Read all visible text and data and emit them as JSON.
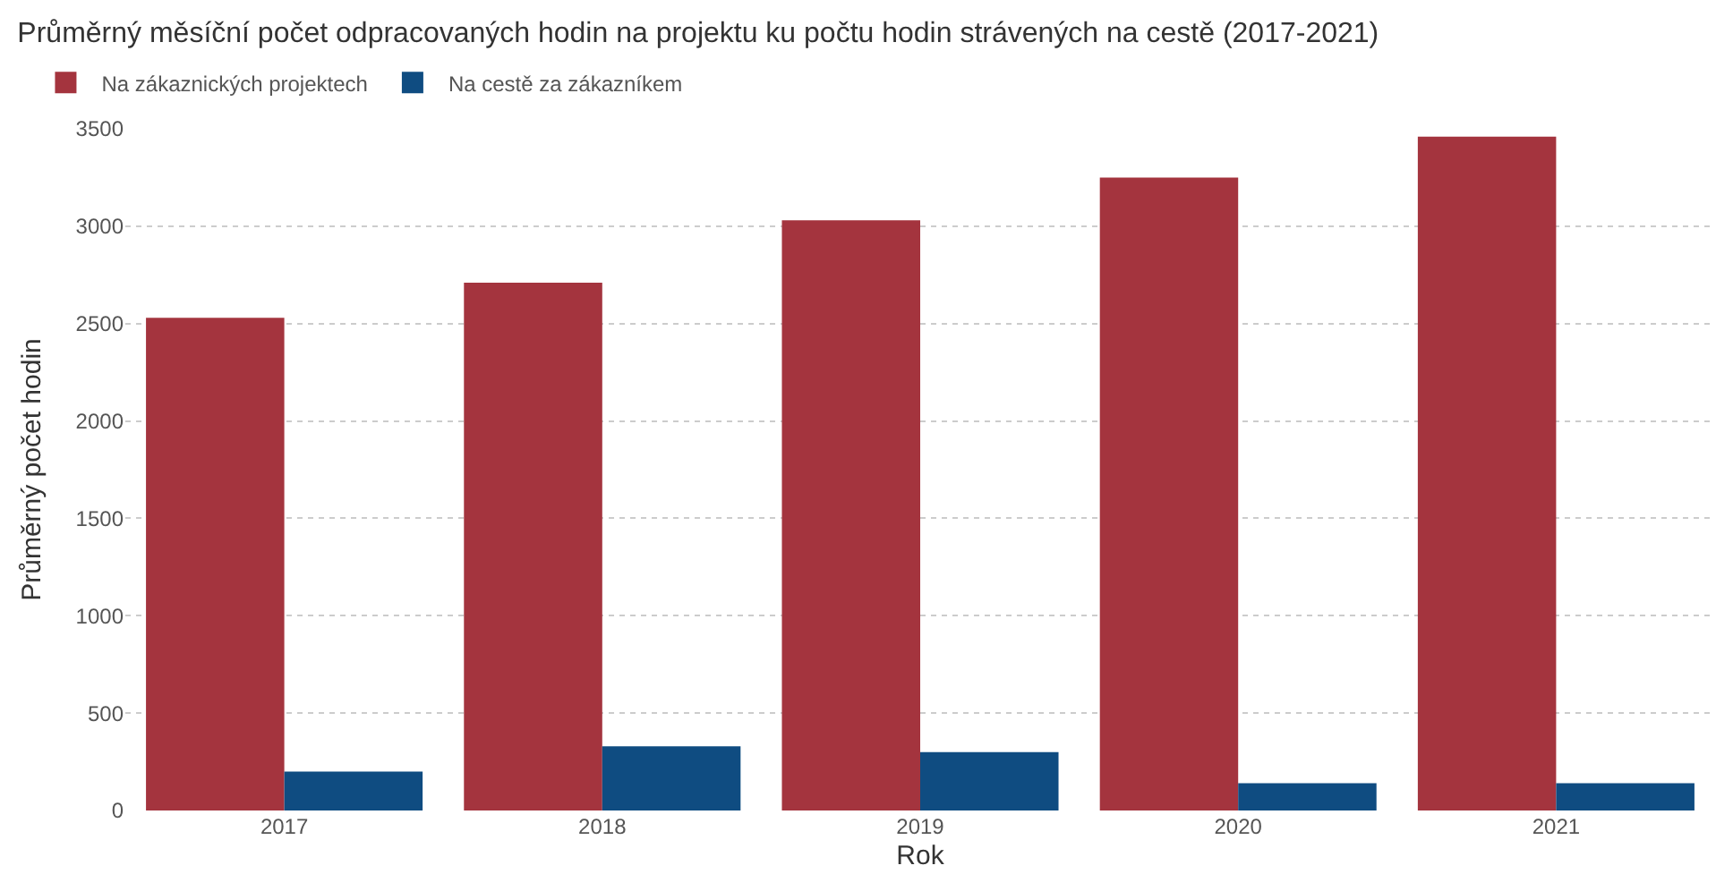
{
  "chart_data": {
    "type": "bar",
    "title": "Průměrný měsíční počet odpracovaných hodin na projektu ku počtu hodin strávených na cestě (2017-2021)",
    "xlabel": "Rok",
    "ylabel": "Průměrný počet hodin",
    "categories": [
      "2017",
      "2018",
      "2019",
      "2020",
      "2021"
    ],
    "series": [
      {
        "name": "Na zákaznických projektech",
        "color": "#a4343e",
        "values": [
          2530,
          2710,
          3030,
          3250,
          3460
        ]
      },
      {
        "name": "Na cestě za zákazníkem",
        "color": "#0f4c81",
        "values": [
          200,
          330,
          300,
          140,
          140
        ]
      }
    ],
    "ylim": [
      0,
      3500
    ],
    "yticks": [
      0,
      500,
      1000,
      1500,
      2000,
      2500,
      3000,
      3500
    ],
    "grid": "y",
    "legend": "top left"
  }
}
